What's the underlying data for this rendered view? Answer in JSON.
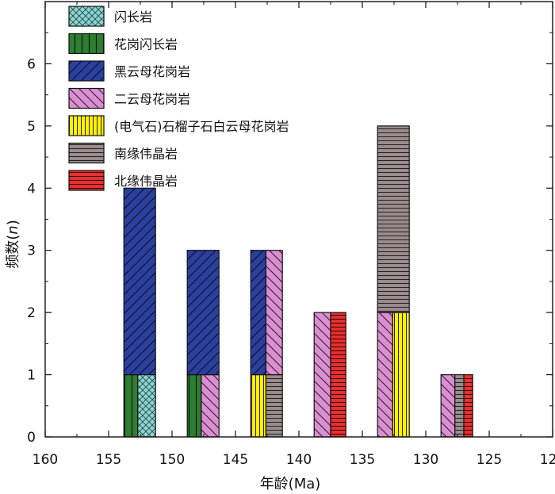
{
  "chart_data": {
    "type": "bar",
    "xlabel": "年龄(Ma)",
    "ylabel": "频数(n)",
    "ylabel_main": "频数(",
    "ylabel_italic": "n",
    "ylabel_close": ")",
    "xlim": [
      160,
      120
    ],
    "ylim": [
      0,
      7
    ],
    "x_ticks": [
      160,
      155,
      150,
      145,
      140,
      135,
      130,
      125,
      120
    ],
    "y_ticks": [
      0,
      1,
      2,
      3,
      4,
      5,
      6
    ],
    "grid": false,
    "legend_position": "top-left",
    "series": [
      {
        "name": "闪长岩",
        "color": "#8fd3cf",
        "pattern": "crosshatch"
      },
      {
        "name": "花岗闪长岩",
        "color": "#2e7d32",
        "pattern": "vertical"
      },
      {
        "name": "黑云母花岗岩",
        "color": "#2b3f9e",
        "pattern": "diagonal-up"
      },
      {
        "name": "二云母花岗岩",
        "color": "#d98fd0",
        "pattern": "diagonal-down"
      },
      {
        "name": "(电气石)石榴子石白云母花岗岩",
        "color": "#ffef00",
        "pattern": "vertical"
      },
      {
        "name": "南缘伟晶岩",
        "color": "#9a8c8c",
        "pattern": "horizontal"
      },
      {
        "name": "北缘伟晶岩",
        "color": "#e53030",
        "pattern": "horizontal"
      }
    ],
    "bars": [
      {
        "x0": 153.8,
        "x1": 152.7,
        "series": "花岗闪长岩",
        "y0": 0,
        "y1": 1
      },
      {
        "x0": 153.8,
        "x1": 151.3,
        "series": "黑云母花岗岩",
        "y0": 1,
        "y1": 4
      },
      {
        "x0": 152.7,
        "x1": 151.3,
        "series": "闪长岩",
        "y0": 0,
        "y1": 1
      },
      {
        "x0": 148.8,
        "x1": 147.7,
        "series": "花岗闪长岩",
        "y0": 0,
        "y1": 1
      },
      {
        "x0": 147.7,
        "x1": 146.3,
        "series": "二云母花岗岩",
        "y0": 0,
        "y1": 1
      },
      {
        "x0": 148.8,
        "x1": 146.3,
        "series": "黑云母花岗岩",
        "y0": 1,
        "y1": 3
      },
      {
        "x0": 143.8,
        "x1": 142.6,
        "series": "(电气石)石榴子石白云母花岗岩",
        "y0": 0,
        "y1": 1
      },
      {
        "x0": 143.8,
        "x1": 142.6,
        "series": "黑云母花岗岩",
        "y0": 1,
        "y1": 3
      },
      {
        "x0": 142.6,
        "x1": 141.3,
        "series": "南缘伟晶岩",
        "y0": 0,
        "y1": 1
      },
      {
        "x0": 142.6,
        "x1": 141.3,
        "series": "二云母花岗岩",
        "y0": 1,
        "y1": 3
      },
      {
        "x0": 138.8,
        "x1": 137.5,
        "series": "二云母花岗岩",
        "y0": 0,
        "y1": 2
      },
      {
        "x0": 137.5,
        "x1": 136.3,
        "series": "北缘伟晶岩",
        "y0": 0,
        "y1": 2
      },
      {
        "x0": 133.8,
        "x1": 132.6,
        "series": "二云母花岗岩",
        "y0": 0,
        "y1": 2
      },
      {
        "x0": 132.6,
        "x1": 131.3,
        "series": "(电气石)石榴子石白云母花岗岩",
        "y0": 0,
        "y1": 2
      },
      {
        "x0": 133.8,
        "x1": 131.3,
        "series": "南缘伟晶岩",
        "y0": 2,
        "y1": 5
      },
      {
        "x0": 128.8,
        "x1": 127.7,
        "series": "二云母花岗岩",
        "y0": 0,
        "y1": 1
      },
      {
        "x0": 127.7,
        "x1": 127.0,
        "series": "南缘伟晶岩",
        "y0": 0,
        "y1": 1
      },
      {
        "x0": 127.0,
        "x1": 126.3,
        "series": "北缘伟晶岩",
        "y0": 0,
        "y1": 1
      }
    ]
  }
}
